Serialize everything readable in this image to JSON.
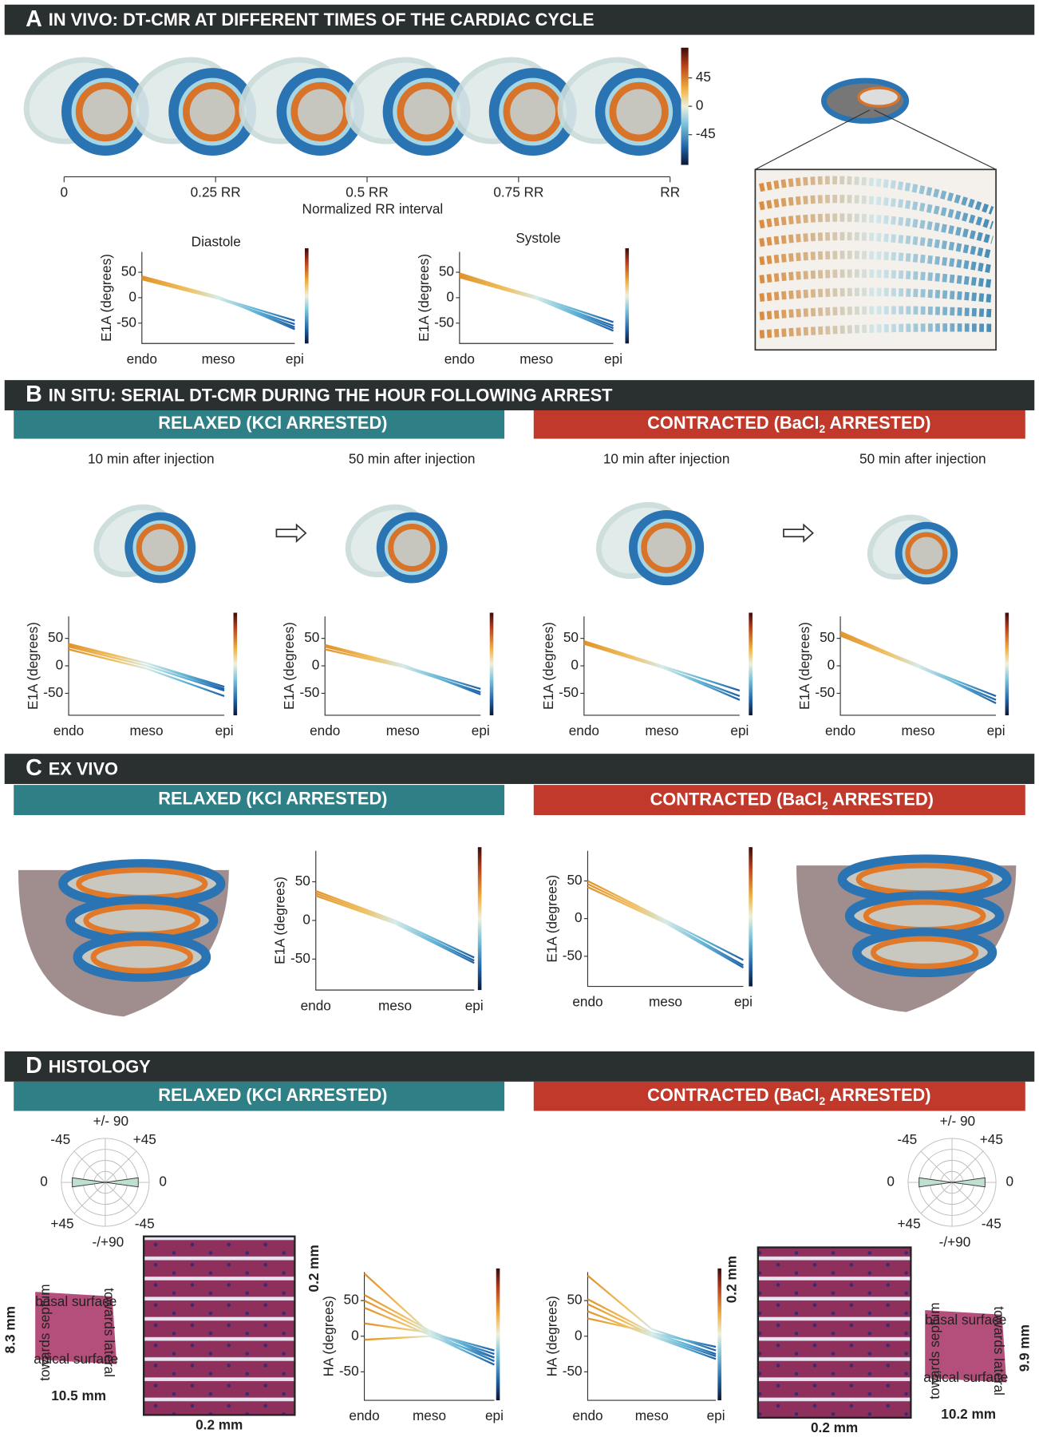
{
  "panel_a": {
    "letter": "A",
    "title": "IN VIVO: DT-CMR AT DIFFERENT TIMES OF THE CARDIAC CYCLE",
    "colorbar_ticks": [
      45,
      0,
      -45
    ],
    "rr_ticks": [
      {
        "value": 0,
        "label": "0"
      },
      {
        "value": 0.25,
        "label": "0.25 RR"
      },
      {
        "value": 0.5,
        "label": "0.5 RR"
      },
      {
        "value": 0.75,
        "label": "0.75 RR"
      },
      {
        "value": 1,
        "label": "RR"
      }
    ],
    "rr_label": "Normalized RR interval",
    "charts": [
      {
        "title": "Diastole",
        "ylabel": "E1A (degrees)",
        "ylim": [
          -90,
          90
        ],
        "yticks": [
          50,
          0,
          -50
        ],
        "xticks": [
          "endo",
          "meso",
          "epi"
        ],
        "series": [
          {
            "values": [
              38,
              0,
              -45
            ]
          },
          {
            "values": [
              36,
              -2,
              -52
            ]
          },
          {
            "values": [
              40,
              0,
              -58
            ]
          },
          {
            "values": [
              42,
              2,
              -62
            ]
          }
        ]
      },
      {
        "title": "Systole",
        "ylabel": "E1A (degrees)",
        "ylim": [
          -90,
          90
        ],
        "yticks": [
          50,
          0,
          -50
        ],
        "xticks": [
          "endo",
          "meso",
          "epi"
        ],
        "series": [
          {
            "values": [
              45,
              2,
              -48
            ]
          },
          {
            "values": [
              42,
              0,
              -55
            ]
          },
          {
            "values": [
              48,
              0,
              -60
            ]
          },
          {
            "values": [
              40,
              -2,
              -65
            ]
          }
        ]
      }
    ]
  },
  "panel_b": {
    "letter": "B",
    "title": "IN SITU: SERIAL DT-CMR DURING THE HOUR FOLLOWING ARREST",
    "relaxed": "RELAXED (KCl ARRESTED)",
    "contracted": {
      "pre": "CONTRACTED (BaCl",
      "sub": "2",
      "post": " ARRESTED)"
    },
    "charts": [
      {
        "title": "10 min after injection",
        "ylabel": "E1A (degrees)",
        "ylim": [
          -90,
          90
        ],
        "yticks": [
          50,
          0,
          -50
        ],
        "xticks": [
          "endo",
          "meso",
          "epi"
        ],
        "series": [
          {
            "values": [
              40,
              5,
              -38
            ]
          },
          {
            "values": [
              35,
              0,
              -45
            ]
          },
          {
            "values": [
              30,
              -5,
              -55
            ]
          },
          {
            "values": [
              38,
              5,
              -42
            ]
          }
        ]
      },
      {
        "title": "50 min after injection",
        "ylabel": "E1A (degrees)",
        "ylim": [
          -90,
          90
        ],
        "yticks": [
          50,
          0,
          -50
        ],
        "xticks": [
          "endo",
          "meso",
          "epi"
        ],
        "series": [
          {
            "values": [
              35,
              0,
              -42
            ]
          },
          {
            "values": [
              30,
              -2,
              -48
            ]
          },
          {
            "values": [
              38,
              2,
              -52
            ]
          }
        ]
      },
      {
        "title": "10 min after injection",
        "ylabel": "E1A (degrees)",
        "ylim": [
          -90,
          90
        ],
        "yticks": [
          50,
          0,
          -50
        ],
        "xticks": [
          "endo",
          "meso",
          "epi"
        ],
        "series": [
          {
            "values": [
              45,
              0,
              -45
            ]
          },
          {
            "values": [
              40,
              -3,
              -55
            ]
          },
          {
            "values": [
              42,
              -2,
              -62
            ]
          }
        ]
      },
      {
        "title": "50 min after injection",
        "ylabel": "E1A (degrees)",
        "ylim": [
          -90,
          90
        ],
        "yticks": [
          50,
          0,
          -50
        ],
        "xticks": [
          "endo",
          "meso",
          "epi"
        ],
        "series": [
          {
            "values": [
              62,
              0,
              -55
            ]
          },
          {
            "values": [
              55,
              -2,
              -62
            ]
          },
          {
            "values": [
              58,
              2,
              -68
            ]
          }
        ]
      }
    ]
  },
  "panel_c": {
    "letter": "C",
    "title": "EX VIVO",
    "relaxed": "RELAXED (KCl ARRESTED)",
    "contracted": {
      "pre": "CONTRACTED (BaCl",
      "sub": "2",
      "post": " ARRESTED)"
    },
    "charts": [
      {
        "ylabel": "E1A (degrees)",
        "ylim": [
          -90,
          90
        ],
        "yticks": [
          50,
          0,
          -50
        ],
        "xticks": [
          "endo",
          "meso",
          "epi"
        ],
        "series": [
          {
            "values": [
              38,
              0,
              -48
            ]
          },
          {
            "values": [
              35,
              -2,
              -52
            ]
          },
          {
            "values": [
              32,
              -4,
              -55
            ]
          }
        ]
      },
      {
        "ylabel": "E1A (degrees)",
        "ylim": [
          -90,
          90
        ],
        "yticks": [
          50,
          0,
          -50
        ],
        "xticks": [
          "endo",
          "meso",
          "epi"
        ],
        "series": [
          {
            "values": [
              50,
              -2,
              -55
            ]
          },
          {
            "values": [
              46,
              -4,
              -62
            ]
          },
          {
            "values": [
              42,
              -6,
              -65
            ]
          }
        ]
      }
    ]
  },
  "panel_d": {
    "letter": "D",
    "title": "HISTOLOGY",
    "relaxed": "RELAXED (KCl ARRESTED)",
    "contracted": {
      "pre": "CONTRACTED (BaCl",
      "sub": "2",
      "post": " ARRESTED)"
    },
    "polar_left": [
      "+/- 90",
      "-45",
      "+45",
      "0",
      "0",
      "+45",
      "-45",
      "-/+90"
    ],
    "polar_right": [
      "+/- 90",
      "-45",
      "+45",
      "0",
      "0",
      "+45",
      "-45",
      "-/+90"
    ],
    "histology_left": {
      "tissue_height": "8.3 mm",
      "tissue_width": "10.5 mm",
      "image_height": "0.2 mm",
      "image_width": "0.2 mm",
      "surfaces": [
        "basal surface",
        "towards septum",
        "towards lateral",
        "apical surface"
      ]
    },
    "histology_right": {
      "tissue_height": "9.9 mm",
      "tissue_width": "10.2 mm",
      "image_height": "0.2 mm",
      "image_width": "0.2 mm",
      "surfaces": [
        "basal surface",
        "towards septum",
        "towards lateral",
        "apical surface"
      ]
    },
    "charts": [
      {
        "ylabel": "HA (degrees)",
        "ylim": [
          -90,
          90
        ],
        "yticks": [
          50,
          0,
          -50
        ],
        "xticks": [
          "endo",
          "meso",
          "epi"
        ],
        "series": [
          {
            "values": [
              88,
              5,
              -25
            ]
          },
          {
            "values": [
              58,
              8,
              -30
            ]
          },
          {
            "values": [
              50,
              5,
              -35
            ]
          },
          {
            "values": [
              40,
              2,
              -40
            ]
          },
          {
            "values": [
              18,
              5,
              -20
            ]
          },
          {
            "values": [
              -5,
              0,
              -30
            ]
          }
        ]
      },
      {
        "ylabel": "HA (degrees)",
        "ylim": [
          -90,
          90
        ],
        "yticks": [
          50,
          0,
          -50
        ],
        "xticks": [
          "endo",
          "meso",
          "epi"
        ],
        "series": [
          {
            "values": [
              85,
              10,
              -20
            ]
          },
          {
            "values": [
              52,
              5,
              -25
            ]
          },
          {
            "values": [
              45,
              2,
              -28
            ]
          },
          {
            "values": [
              35,
              0,
              -32
            ]
          },
          {
            "values": [
              25,
              5,
              -15
            ]
          }
        ]
      }
    ]
  }
}
